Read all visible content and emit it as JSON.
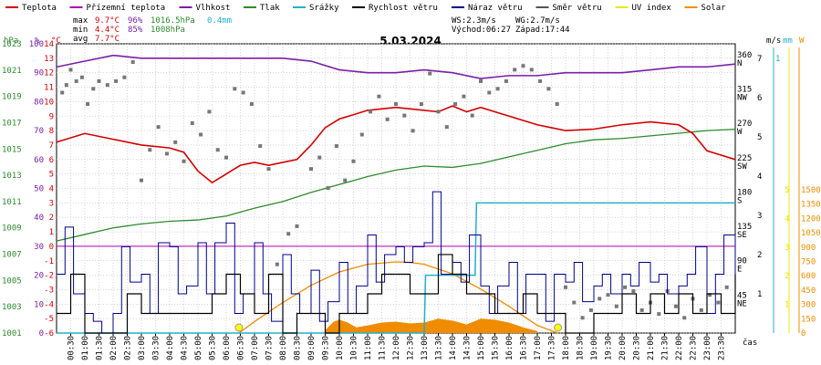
{
  "legend": [
    {
      "label": "Teplota",
      "color": "#d40000"
    },
    {
      "label": "Přízemní teplota",
      "color": "#b000b0"
    },
    {
      "label": "Vlhkost",
      "color": "#7a1fa8"
    },
    {
      "label": "Tlak",
      "color": "#2e8b2e"
    },
    {
      "label": "Srážky",
      "color": "#22b0c8"
    },
    {
      "label": "Rychlost větru",
      "color": "#000000"
    },
    {
      "label": "Náraz větru",
      "color": "#00008b"
    },
    {
      "label": "Směr větru",
      "color": "#555555"
    },
    {
      "label": "UV index",
      "color": "#e8e800"
    },
    {
      "label": "Solar",
      "color": "#f08c00"
    }
  ],
  "stats": {
    "max_label": "max",
    "max_temp": "9.7°C",
    "max_hum": "96%",
    "max_press": "1016.5hPa",
    "max_rain": "0.4mm",
    "min_label": "min",
    "min_temp": "4.4°C",
    "min_hum": "85%",
    "min_press": "1008hPa",
    "avg_label": "avg",
    "avg_temp": "7.7°C"
  },
  "wind_info": {
    "ws": "WS:2.3m/s",
    "wg": "WG:2.7m/s",
    "sunrise": "Východ:06:27",
    "sunset": "Západ:17:44"
  },
  "axis_units": {
    "hpa": "hPa",
    "pct": "%",
    "degc": "°C",
    "ms": "m/s",
    "mm": "mm",
    "w": "W"
  },
  "xlabel": "čas",
  "chart_data": {
    "type": "line",
    "title": "5.03.2024",
    "x_ticks": [
      "00:30",
      "01:00",
      "01:30",
      "02:00",
      "02:30",
      "03:00",
      "03:30",
      "04:00",
      "04:30",
      "05:00",
      "05:30",
      "06:00",
      "06:30",
      "07:00",
      "07:30",
      "08:00",
      "08:30",
      "09:00",
      "09:30",
      "10:00",
      "10:30",
      "11:00",
      "11:30",
      "12:00",
      "12:30",
      "13:00",
      "13:30",
      "14:00",
      "14:30",
      "15:00",
      "15:30",
      "16:00",
      "16:30",
      "17:00",
      "17:30",
      "18:00",
      "18:30",
      "19:00",
      "19:30",
      "20:00",
      "20:30",
      "21:00",
      "21:30",
      "22:00",
      "22:30",
      "23:00",
      "23:30"
    ],
    "hpa_ticks": [
      "1023",
      "1021",
      "1019",
      "1017",
      "1015",
      "1013",
      "1011",
      "1009",
      "1007",
      "1005",
      "1003",
      "1001"
    ],
    "pct_ticks": [
      "100",
      "90",
      "80",
      "70",
      "60",
      "50",
      "40",
      "30",
      "20",
      "10",
      "0"
    ],
    "degc_ticks": [
      "14",
      "13",
      "12",
      "11",
      "10",
      "9",
      "8",
      "7",
      "6",
      "5",
      "4",
      "3",
      "2",
      "1",
      "0",
      "-1",
      "-2",
      "-3",
      "-4",
      "-5",
      "-6"
    ],
    "dir_ticks": [
      {
        "deg": 360,
        "dir": "N"
      },
      {
        "deg": 315,
        "dir": "NW"
      },
      {
        "deg": 270,
        "dir": "W"
      },
      {
        "deg": 225,
        "dir": "SW"
      },
      {
        "deg": 180,
        "dir": "S"
      },
      {
        "deg": 135,
        "dir": "SE"
      },
      {
        "deg": 90,
        "dir": "E"
      },
      {
        "deg": 45,
        "dir": "NE"
      }
    ],
    "ms_ticks": [
      "7",
      "6",
      "5",
      "4",
      "3",
      "2",
      "1"
    ],
    "mm_ticks": [
      "1"
    ],
    "w_ticks": [
      "1500",
      "1350",
      "1200",
      "1050",
      "900",
      "750",
      "600",
      "450",
      "300",
      "150",
      "0"
    ],
    "uv_ticks": [
      "5",
      "4",
      "3",
      "2",
      "1"
    ],
    "series": [
      {
        "name": "Teplota",
        "unit": "°C",
        "color": "#d40000",
        "x_hours": [
          0,
          1,
          2,
          3,
          4,
          4.5,
          5,
          5.5,
          6,
          6.5,
          7,
          7.5,
          8,
          8.5,
          9,
          9.5,
          10,
          11,
          12,
          13,
          13.5,
          14,
          14.5,
          15,
          16,
          17,
          17.5,
          18,
          19,
          20,
          21,
          22,
          22.5,
          23,
          23.5,
          24
        ],
        "values": [
          7.2,
          7.8,
          7.4,
          7.0,
          6.8,
          6.5,
          5.2,
          4.4,
          5.0,
          5.6,
          5.8,
          5.6,
          5.8,
          6.0,
          7.0,
          8.2,
          8.8,
          9.4,
          9.6,
          9.4,
          9.3,
          9.7,
          9.3,
          9.6,
          9.0,
          8.4,
          8.2,
          8.0,
          8.1,
          8.4,
          8.6,
          8.4,
          7.8,
          6.6,
          6.3,
          6.0
        ]
      },
      {
        "name": "Přízemní teplota",
        "unit": "°C",
        "color": "#b000b0",
        "x_hours": [
          0,
          24
        ],
        "values": [
          0,
          0
        ]
      },
      {
        "name": "Vlhkost",
        "unit": "%",
        "color": "#7a1fa8",
        "x_hours": [
          0,
          1,
          2,
          3,
          4,
          5,
          6,
          7,
          8,
          9,
          10,
          11,
          12,
          13,
          14,
          15,
          16,
          17,
          18,
          19,
          20,
          21,
          22,
          23,
          24
        ],
        "values": [
          92,
          94,
          96,
          95,
          95,
          95,
          95,
          95,
          95,
          94,
          91,
          90,
          90,
          91,
          90,
          88,
          89,
          89,
          90,
          90,
          90,
          91,
          92,
          92,
          93
        ]
      },
      {
        "name": "Tlak",
        "unit": "hPa",
        "color": "#2e8b2e",
        "x_hours": [
          0,
          1,
          2,
          3,
          4,
          5,
          6,
          7,
          8,
          9,
          10,
          11,
          12,
          13,
          14,
          15,
          16,
          17,
          18,
          19,
          20,
          21,
          22,
          23,
          24
        ],
        "values": [
          1008.0,
          1008.5,
          1009.0,
          1009.3,
          1009.5,
          1009.6,
          1009.9,
          1010.5,
          1011.0,
          1011.7,
          1012.3,
          1012.9,
          1013.4,
          1013.7,
          1013.6,
          1013.9,
          1014.4,
          1014.9,
          1015.4,
          1015.7,
          1015.8,
          1016.0,
          1016.2,
          1016.4,
          1016.5
        ]
      },
      {
        "name": "Srážky",
        "unit": "mm",
        "color": "#22b0c8",
        "x_hours": [
          0,
          13.0,
          13.05,
          14.8,
          14.85,
          24
        ],
        "values": [
          0,
          0,
          0.2,
          0.2,
          0.4,
          0.4
        ]
      },
      {
        "name": "Rychlost větru",
        "unit": "m/s",
        "color": "#000000",
        "x_hours": [
          0,
          0.5,
          1,
          1.5,
          2,
          2.5,
          3,
          3.5,
          4,
          4.5,
          5,
          5.5,
          6,
          6.5,
          7,
          7.5,
          8,
          8.5,
          9,
          9.5,
          10,
          10.5,
          11,
          11.5,
          12,
          12.5,
          13,
          13.5,
          14,
          14.5,
          15,
          15.5,
          16,
          16.5,
          17,
          17.5,
          18,
          18.5,
          19,
          19.5,
          20,
          20.5,
          21,
          21.5,
          22,
          22.5,
          23,
          23.5,
          24
        ],
        "values": [
          0.5,
          1.5,
          0,
          0,
          0,
          1.0,
          0.5,
          0.5,
          0.5,
          0.5,
          0.5,
          1.0,
          1.5,
          1.0,
          0.5,
          1.5,
          0,
          0.5,
          0.5,
          0,
          0.5,
          0.5,
          1.0,
          1.5,
          1.5,
          1.0,
          1.0,
          2.0,
          1.5,
          1.0,
          1.0,
          0.5,
          0.5,
          1.0,
          0.5,
          0.5,
          0,
          0,
          0.5,
          0.5,
          1.0,
          0.5,
          1.0,
          0.5,
          1.0,
          0.5,
          1.0,
          0.5,
          1.5
        ]
      },
      {
        "name": "Náraz větru",
        "unit": "m/s",
        "color": "#00008b",
        "x_hours": [
          0,
          0.3,
          0.6,
          1,
          1.3,
          1.6,
          2,
          2.3,
          2.6,
          3,
          3.3,
          3.6,
          4,
          4.3,
          4.6,
          5,
          5.3,
          5.6,
          6,
          6.3,
          6.6,
          7,
          7.3,
          7.6,
          8,
          8.3,
          8.6,
          9,
          9.3,
          9.6,
          10,
          10.3,
          10.6,
          11,
          11.3,
          11.6,
          12,
          12.3,
          12.6,
          13,
          13.3,
          13.6,
          14,
          14.3,
          14.6,
          15,
          15.3,
          15.6,
          16,
          16.3,
          16.6,
          17,
          17.3,
          17.6,
          18,
          18.3,
          18.6,
          19,
          19.3,
          19.6,
          20,
          20.3,
          20.6,
          21,
          21.3,
          21.6,
          22,
          22.3,
          22.6,
          23,
          23.3,
          23.6,
          24
        ],
        "values": [
          1.5,
          2.7,
          1.0,
          0.5,
          0.3,
          0,
          0.5,
          2.2,
          1.3,
          1.5,
          0.5,
          2.3,
          2.2,
          1.0,
          1.2,
          2.3,
          1.0,
          2.3,
          2.8,
          0.5,
          1.0,
          2.3,
          1.0,
          0.3,
          2.0,
          1.0,
          0.5,
          1.6,
          0.3,
          0.8,
          1.8,
          0.5,
          1.2,
          2.5,
          1.3,
          2.0,
          2.2,
          1.8,
          2.2,
          2.3,
          3.6,
          1.5,
          1.8,
          1.3,
          2.5,
          1.2,
          0.5,
          1.2,
          1.8,
          0.5,
          1.5,
          1.5,
          0.3,
          1.5,
          1.3,
          1.8,
          0.8,
          1.2,
          1.5,
          1.0,
          1.5,
          1.2,
          1.8,
          1.3,
          1.5,
          1.0,
          1.2,
          1.5,
          2.2,
          0.5,
          1.5,
          2.5,
          1.5
        ]
      },
      {
        "name": "Solar",
        "unit": "W",
        "color": "#f08c00",
        "x_hours": [
          6.45,
          7,
          8,
          9,
          10,
          11,
          12,
          12.5,
          13,
          14,
          15,
          16,
          17,
          17.73
        ],
        "values": [
          0,
          120,
          320,
          500,
          640,
          720,
          745,
          740,
          720,
          620,
          460,
          280,
          80,
          0
        ]
      }
    ],
    "solar_actual": {
      "x_hours": [
        9.5,
        9.8,
        10,
        10.3,
        10.6,
        11,
        11.5,
        12,
        12.5,
        13,
        13.5,
        14,
        14.5,
        15,
        15.5,
        16,
        16.5,
        17
      ],
      "values": [
        30,
        120,
        140,
        110,
        60,
        80,
        110,
        120,
        100,
        110,
        150,
        130,
        90,
        150,
        140,
        110,
        60,
        20
      ]
    },
    "wind_dir_deg": [
      {
        "h": 0.2,
        "d": 315
      },
      {
        "h": 0.35,
        "d": 325
      },
      {
        "h": 0.5,
        "d": 345
      },
      {
        "h": 0.7,
        "d": 330
      },
      {
        "h": 0.9,
        "d": 335
      },
      {
        "h": 1.1,
        "d": 300
      },
      {
        "h": 1.3,
        "d": 320
      },
      {
        "h": 1.5,
        "d": 330
      },
      {
        "h": 1.8,
        "d": 325
      },
      {
        "h": 2.1,
        "d": 330
      },
      {
        "h": 2.4,
        "d": 335
      },
      {
        "h": 2.7,
        "d": 355
      },
      {
        "h": 3.0,
        "d": 200
      },
      {
        "h": 3.3,
        "d": 240
      },
      {
        "h": 3.6,
        "d": 270
      },
      {
        "h": 3.9,
        "d": 235
      },
      {
        "h": 4.2,
        "d": 250
      },
      {
        "h": 4.5,
        "d": 225
      },
      {
        "h": 4.8,
        "d": 275
      },
      {
        "h": 5.1,
        "d": 260
      },
      {
        "h": 5.4,
        "d": 290
      },
      {
        "h": 5.7,
        "d": 240
      },
      {
        "h": 6.0,
        "d": 230
      },
      {
        "h": 6.3,
        "d": 320
      },
      {
        "h": 6.6,
        "d": 315
      },
      {
        "h": 6.9,
        "d": 300
      },
      {
        "h": 7.2,
        "d": 245
      },
      {
        "h": 7.5,
        "d": 215
      },
      {
        "h": 7.8,
        "d": 90
      },
      {
        "h": 8.2,
        "d": 130
      },
      {
        "h": 8.5,
        "d": 140
      },
      {
        "h": 9.0,
        "d": 215
      },
      {
        "h": 9.3,
        "d": 230
      },
      {
        "h": 9.6,
        "d": 190
      },
      {
        "h": 9.9,
        "d": 245
      },
      {
        "h": 10.2,
        "d": 200
      },
      {
        "h": 10.5,
        "d": 225
      },
      {
        "h": 10.8,
        "d": 260
      },
      {
        "h": 11.1,
        "d": 290
      },
      {
        "h": 11.4,
        "d": 310
      },
      {
        "h": 11.7,
        "d": 280
      },
      {
        "h": 12.0,
        "d": 300
      },
      {
        "h": 12.3,
        "d": 285
      },
      {
        "h": 12.6,
        "d": 265
      },
      {
        "h": 12.9,
        "d": 300
      },
      {
        "h": 13.2,
        "d": 340
      },
      {
        "h": 13.5,
        "d": 290
      },
      {
        "h": 13.8,
        "d": 270
      },
      {
        "h": 14.1,
        "d": 300
      },
      {
        "h": 14.4,
        "d": 310
      },
      {
        "h": 14.7,
        "d": 285
      },
      {
        "h": 15.0,
        "d": 330
      },
      {
        "h": 15.3,
        "d": 315
      },
      {
        "h": 15.6,
        "d": 320
      },
      {
        "h": 15.9,
        "d": 330
      },
      {
        "h": 16.2,
        "d": 345
      },
      {
        "h": 16.5,
        "d": 350
      },
      {
        "h": 16.8,
        "d": 345
      },
      {
        "h": 17.1,
        "d": 330
      },
      {
        "h": 17.4,
        "d": 320
      },
      {
        "h": 17.7,
        "d": 300
      },
      {
        "h": 18.0,
        "d": 60
      },
      {
        "h": 18.3,
        "d": 40
      },
      {
        "h": 18.6,
        "d": 20
      },
      {
        "h": 18.9,
        "d": 30
      },
      {
        "h": 19.2,
        "d": 45
      },
      {
        "h": 19.5,
        "d": 50
      },
      {
        "h": 19.8,
        "d": 35
      },
      {
        "h": 20.1,
        "d": 60
      },
      {
        "h": 20.4,
        "d": 55
      },
      {
        "h": 20.7,
        "d": 30
      },
      {
        "h": 21.0,
        "d": 40
      },
      {
        "h": 21.3,
        "d": 25
      },
      {
        "h": 21.6,
        "d": 55
      },
      {
        "h": 21.9,
        "d": 35
      },
      {
        "h": 22.2,
        "d": 20
      },
      {
        "h": 22.5,
        "d": 45
      },
      {
        "h": 22.8,
        "d": 30
      },
      {
        "h": 23.1,
        "d": 50
      },
      {
        "h": 23.4,
        "d": 40
      },
      {
        "h": 23.7,
        "d": 60
      }
    ],
    "uv_markers": [
      {
        "h": 6.45,
        "v": 0
      },
      {
        "h": 17.73,
        "v": 0
      }
    ]
  }
}
